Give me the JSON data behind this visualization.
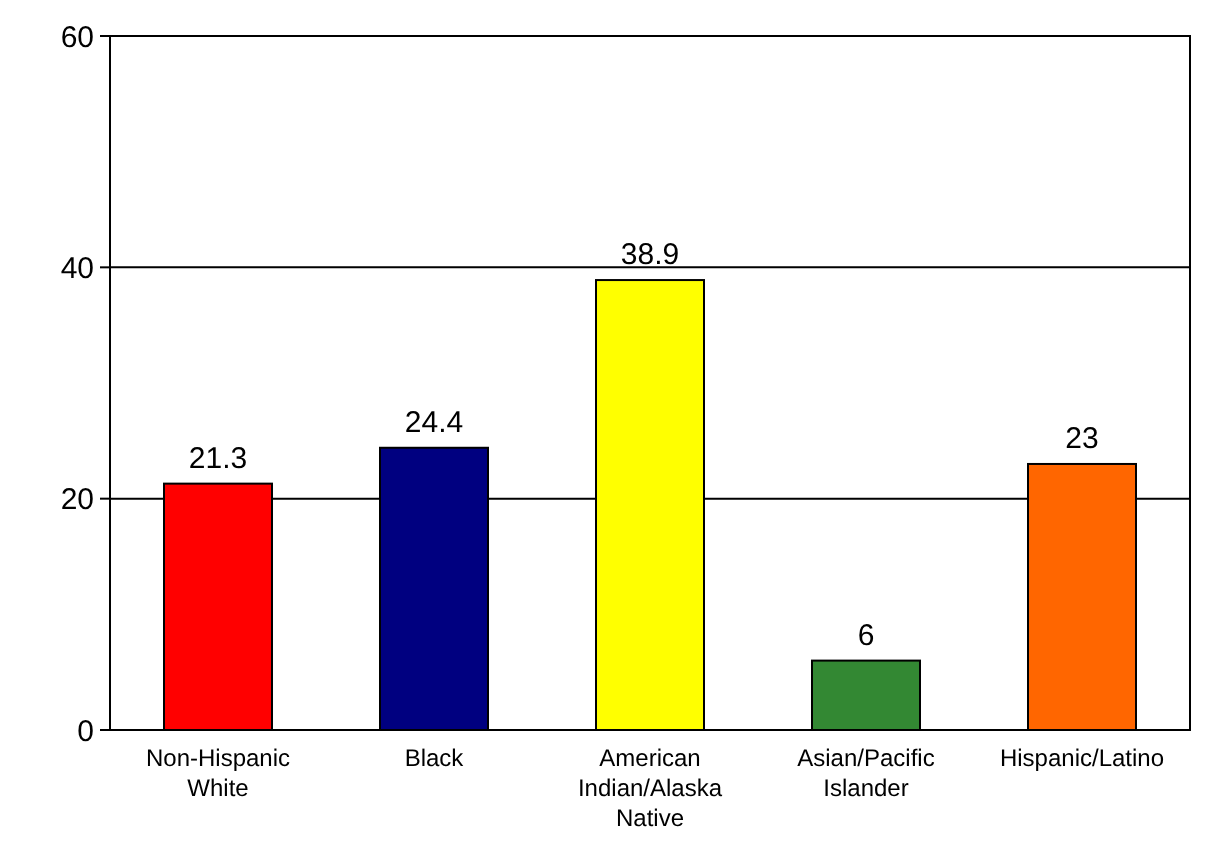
{
  "chart_data": {
    "type": "bar",
    "categories": [
      "Non-Hispanic White",
      "Black",
      "American Indian/Alaska Native",
      "Asian/Pacific Islander",
      "Hispanic/Latino"
    ],
    "values": [
      21.3,
      24.4,
      38.9,
      6,
      23
    ],
    "colors": [
      "#ff0000",
      "#000080",
      "#ffff00",
      "#338833",
      "#ff6600"
    ],
    "ylim": [
      0,
      60
    ],
    "yticks": [
      0,
      20,
      40,
      60
    ],
    "grid": "y",
    "data_labels": true
  }
}
